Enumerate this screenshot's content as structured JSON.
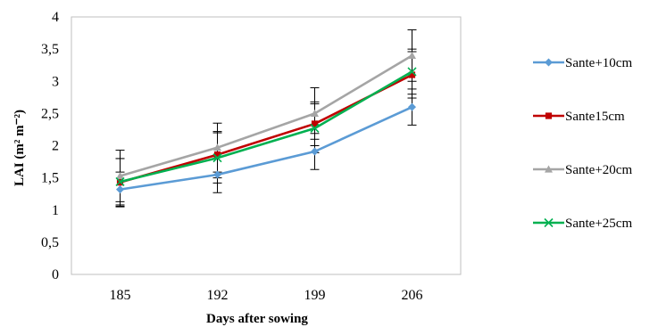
{
  "chart_data": {
    "type": "line",
    "categories": [
      "185",
      "192",
      "199",
      "206"
    ],
    "xlabel": "Days after sowing",
    "ylabel": "LAI (m² m⁻²)",
    "ylim": [
      0,
      4
    ],
    "y_ticks": [
      "0",
      "0,5",
      "1",
      "1,5",
      "2",
      "2,5",
      "3",
      "3,5",
      "4"
    ],
    "grid": false,
    "legend_position": "right",
    "series": [
      {
        "name": "Sante+10cm",
        "color": "#5B9BD5",
        "marker": "diamond",
        "values": [
          1.32,
          1.55,
          1.91,
          2.6
        ],
        "errors": [
          0.27,
          0.28,
          0.28,
          0.28
        ]
      },
      {
        "name": "Sante15cm",
        "color": "#C00000",
        "marker": "square",
        "values": [
          1.43,
          1.86,
          2.34,
          3.1
        ],
        "errors": [
          0.37,
          0.36,
          0.34,
          0.36
        ]
      },
      {
        "name": "Sante+20cm",
        "color": "#A5A5A5",
        "marker": "triangle",
        "values": [
          1.53,
          1.97,
          2.5,
          3.4
        ],
        "errors": [
          0.4,
          0.38,
          0.4,
          0.4
        ]
      },
      {
        "name": "Sante+25cm",
        "color": "#00B050",
        "marker": "x",
        "values": [
          1.44,
          1.81,
          2.27,
          3.15
        ],
        "errors": [
          0.36,
          0.39,
          0.38,
          0.35
        ]
      }
    ]
  }
}
